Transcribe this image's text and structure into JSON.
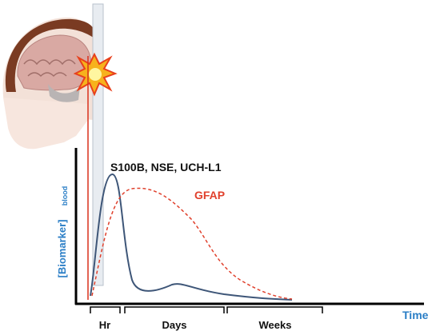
{
  "labels": {
    "markers_early": "S100B, NSE, UCH-L1",
    "marker_late": "GFAP",
    "y_axis": "[Biomarker]",
    "y_axis_subscript": "blood",
    "x_axis": "Time"
  },
  "phases": [
    "Hr",
    "Days",
    "Weeks"
  ]
}
